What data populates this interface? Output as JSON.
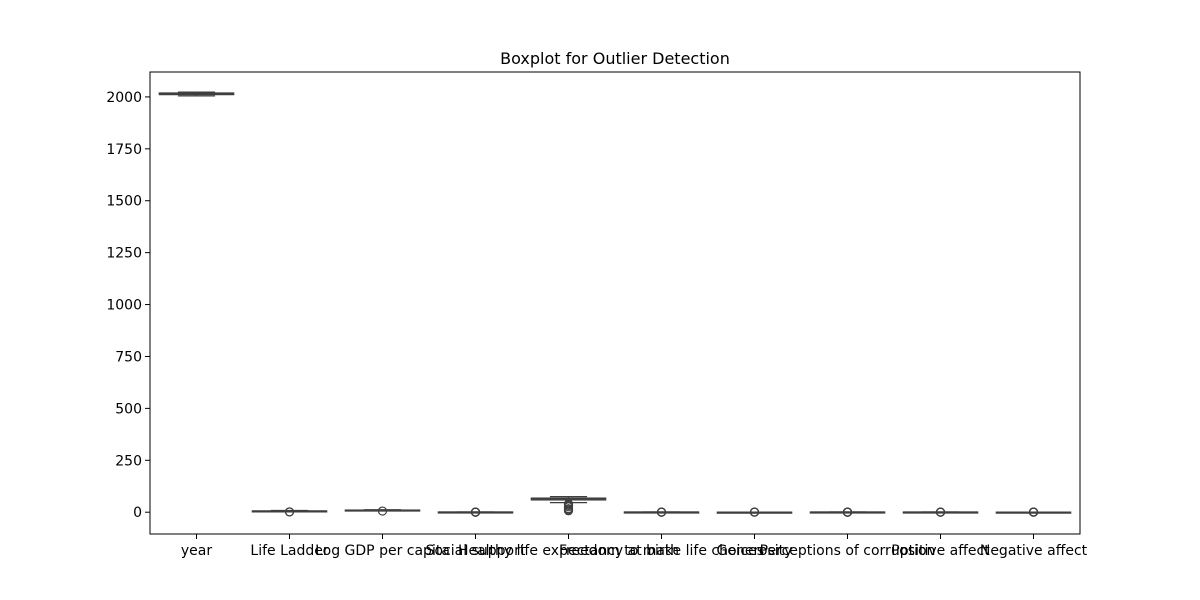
{
  "chart_data": {
    "type": "boxplot",
    "title": "Boxplot for Outlier Detection",
    "xlabel": "",
    "ylabel": "",
    "ylim": [
      -105,
      2120
    ],
    "yticks": [
      0,
      250,
      500,
      750,
      1000,
      1250,
      1500,
      1750,
      2000
    ],
    "grid": false,
    "colors": {
      "box_fill": "#4c72b0",
      "line": "#3f3f3f",
      "axes": "#000000"
    },
    "categories": [
      "year",
      "Life Ladder",
      "Log GDP per capita",
      "Social support",
      "Healthy life expectancy at birth",
      "Freedom to make life choices",
      "Generosity",
      "Perceptions of corruption",
      "Positive affect",
      "Negative affect"
    ],
    "boxes": [
      {
        "whisker_low": 2005,
        "q1": 2011,
        "median": 2015,
        "q3": 2019,
        "whisker_high": 2023,
        "outliers": []
      },
      {
        "whisker_low": 2.4,
        "q1": 4.6,
        "median": 5.4,
        "q3": 6.2,
        "whisker_high": 8.0,
        "outliers": [
          1.3,
          1.7
        ]
      },
      {
        "whisker_low": 6.2,
        "q1": 8.5,
        "median": 9.4,
        "q3": 10.4,
        "whisker_high": 11.7,
        "outliers": [
          5.5
        ]
      },
      {
        "whisker_low": 0.45,
        "q1": 0.75,
        "median": 0.83,
        "q3": 0.9,
        "whisker_high": 0.99,
        "outliers": [
          0.29,
          0.33,
          0.38,
          0.42
        ]
      },
      {
        "whisker_low": 46,
        "q1": 59,
        "median": 65,
        "q3": 68,
        "whisker_high": 75,
        "outliers": [
          7,
          12,
          17,
          26,
          33,
          38,
          40
        ]
      },
      {
        "whisker_low": 0.39,
        "q1": 0.66,
        "median": 0.77,
        "q3": 0.86,
        "whisker_high": 0.98,
        "outliers": [
          0.23,
          0.29,
          0.33
        ]
      },
      {
        "whisker_low": -0.34,
        "q1": -0.11,
        "median": -0.02,
        "q3": 0.09,
        "whisker_high": 0.39,
        "outliers": [
          0.48,
          0.56,
          0.65
        ]
      },
      {
        "whisker_low": 0.38,
        "q1": 0.69,
        "median": 0.8,
        "q3": 0.87,
        "whisker_high": 0.98,
        "outliers": [
          0.04,
          0.09,
          0.15,
          0.22,
          0.3
        ]
      },
      {
        "whisker_low": 0.32,
        "q1": 0.57,
        "median": 0.66,
        "q3": 0.74,
        "whisker_high": 0.88,
        "outliers": [
          0.18,
          0.22,
          0.26
        ]
      },
      {
        "whisker_low": 0.08,
        "q1": 0.21,
        "median": 0.26,
        "q3": 0.31,
        "whisker_high": 0.45,
        "outliers": [
          0.5,
          0.55,
          0.6,
          0.66,
          0.7
        ]
      }
    ]
  }
}
